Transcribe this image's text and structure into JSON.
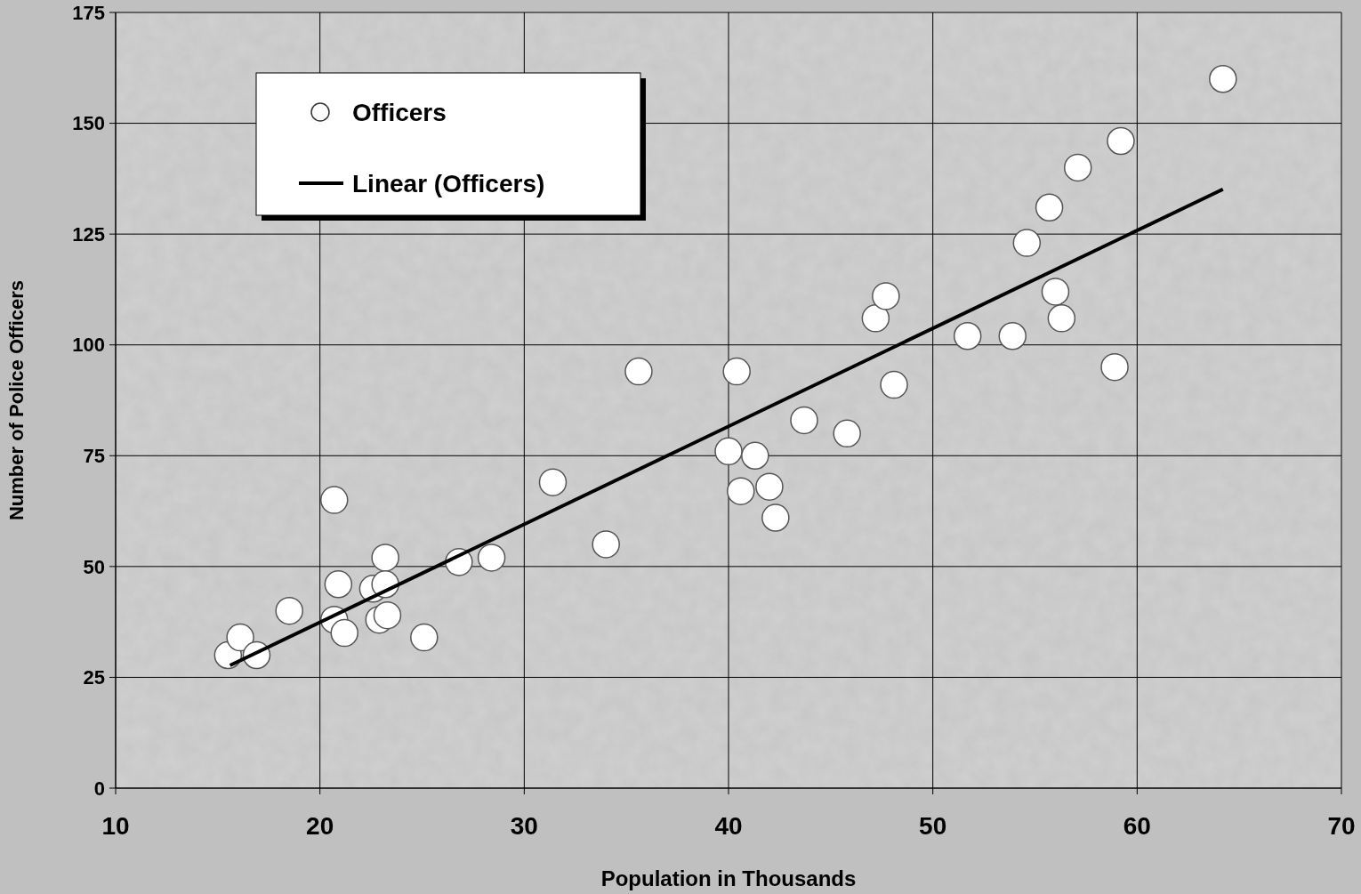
{
  "chart_data": {
    "type": "scatter",
    "xlabel": "Population in Thousands",
    "ylabel": "Number of Police Officers",
    "xlim": [
      10,
      70
    ],
    "xticks": [
      10,
      20,
      30,
      40,
      50,
      60,
      70
    ],
    "ylim": [
      0,
      175
    ],
    "yticks": [
      0,
      25,
      50,
      75,
      100,
      125,
      150,
      175
    ],
    "grid": true,
    "legend": "top left",
    "series": [
      {
        "name": "Officers",
        "marker": "circle",
        "color": "#ffffff",
        "x": [
          15.5,
          16.1,
          16.9,
          18.5,
          20.7,
          20.9,
          20.7,
          21.2,
          22.6,
          22.9,
          23.2,
          23.2,
          23.3,
          25.1,
          26.8,
          28.4,
          31.4,
          34.0,
          35.6,
          40.0,
          40.4,
          40.6,
          41.3,
          42.0,
          42.3,
          43.7,
          45.8,
          47.2,
          47.7,
          48.1,
          51.7,
          53.9,
          54.6,
          55.7,
          56.0,
          56.3,
          57.1,
          58.9,
          59.2,
          64.2
        ],
        "values": [
          30,
          34,
          30,
          40,
          38,
          46,
          65,
          35,
          45,
          38,
          52,
          46,
          39,
          34,
          51,
          52,
          69,
          55,
          94,
          76,
          94,
          67,
          75,
          68,
          61,
          83,
          80,
          106,
          111,
          91,
          102,
          102,
          123,
          131,
          112,
          106,
          140,
          95,
          146,
          160
        ]
      },
      {
        "name": "Linear (Officers)",
        "type": "line",
        "line_style": "solid",
        "color": "#000000",
        "x": [
          15.6,
          64.2
        ],
        "values": [
          27.7,
          135.1
        ]
      }
    ]
  }
}
